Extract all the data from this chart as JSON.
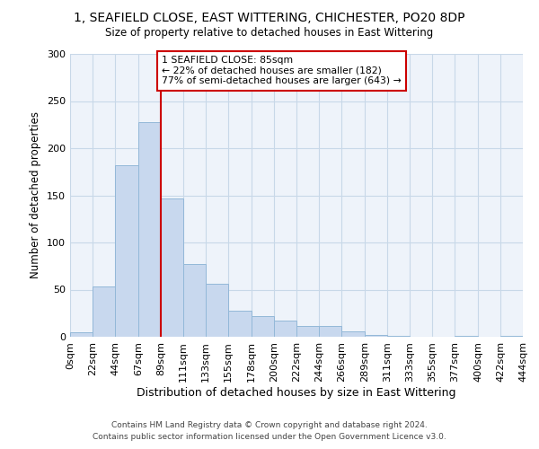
{
  "title": "1, SEAFIELD CLOSE, EAST WITTERING, CHICHESTER, PO20 8DP",
  "subtitle": "Size of property relative to detached houses in East Wittering",
  "xlabel": "Distribution of detached houses by size in East Wittering",
  "ylabel": "Number of detached properties",
  "bin_labels": [
    "0sqm",
    "22sqm",
    "44sqm",
    "67sqm",
    "89sqm",
    "111sqm",
    "133sqm",
    "155sqm",
    "178sqm",
    "200sqm",
    "222sqm",
    "244sqm",
    "266sqm",
    "289sqm",
    "311sqm",
    "333sqm",
    "355sqm",
    "377sqm",
    "400sqm",
    "422sqm",
    "444sqm"
  ],
  "bin_edges": [
    0,
    22,
    44,
    67,
    89,
    111,
    133,
    155,
    178,
    200,
    222,
    244,
    266,
    289,
    311,
    333,
    355,
    377,
    400,
    422,
    444
  ],
  "bar_heights": [
    5,
    53,
    182,
    228,
    147,
    77,
    56,
    28,
    22,
    17,
    11,
    11,
    6,
    2,
    1,
    0,
    0,
    1,
    0,
    1
  ],
  "bar_color": "#c8d8ee",
  "bar_edge_color": "#93b8d8",
  "grid_color": "#c8d8e8",
  "property_line_x": 89,
  "property_line_color": "#cc0000",
  "annotation_text": "1 SEAFIELD CLOSE: 85sqm\n← 22% of detached houses are smaller (182)\n77% of semi-detached houses are larger (643) →",
  "annotation_box_facecolor": "#ffffff",
  "annotation_box_edgecolor": "#cc0000",
  "ylim": [
    0,
    300
  ],
  "yticks": [
    0,
    50,
    100,
    150,
    200,
    250,
    300
  ],
  "footer_text": "Contains HM Land Registry data © Crown copyright and database right 2024.\nContains public sector information licensed under the Open Government Licence v3.0.",
  "bg_color": "#ffffff",
  "plot_bg_color": "#eef3fa"
}
